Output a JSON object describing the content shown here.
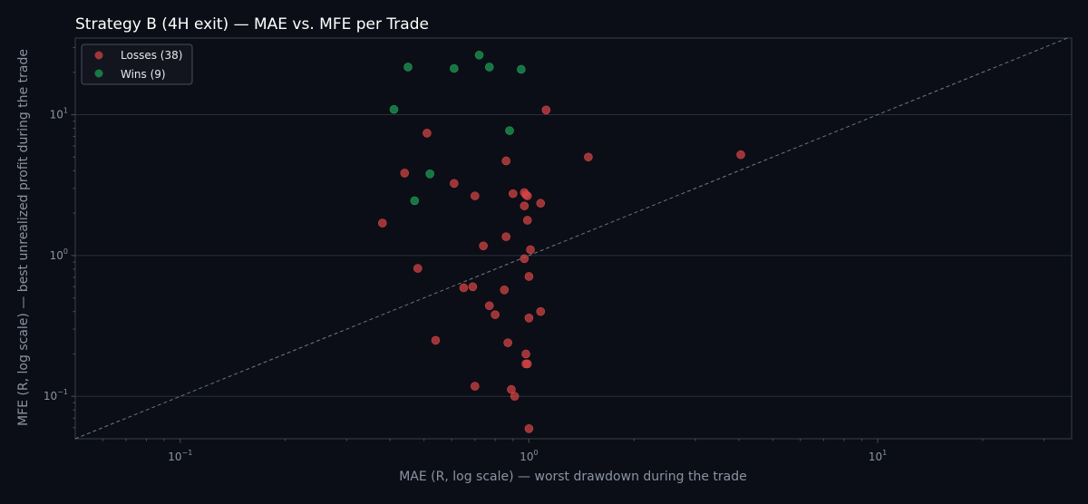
{
  "chart_data": {
    "type": "scatter",
    "title": "Strategy B (4H exit) — MAE vs. MFE per Trade",
    "xlabel": "MAE (R, log scale) — worst drawdown during the trade",
    "ylabel": "MFE (R, log scale) — best unrealized profit during the trade",
    "xscale": "log",
    "yscale": "log",
    "xlim": [
      0.05,
      36
    ],
    "ylim": [
      0.05,
      35
    ],
    "x_ticks": [
      {
        "value": 0.1,
        "base": "10",
        "exp": "−1"
      },
      {
        "value": 1,
        "base": "10",
        "exp": "0"
      },
      {
        "value": 10,
        "base": "10",
        "exp": "1"
      }
    ],
    "y_ticks": [
      {
        "value": 0.1,
        "base": "10",
        "exp": "−1"
      },
      {
        "value": 1,
        "base": "10",
        "exp": "0"
      },
      {
        "value": 10,
        "base": "10",
        "exp": "1"
      }
    ],
    "grid": "y-major",
    "reference_line": "y = x (dashed)",
    "legend": {
      "position": "top-left",
      "entries": [
        "Losses (38)",
        "Wins (9)"
      ]
    },
    "series": [
      {
        "name": "Losses (38)",
        "color": "#d64545",
        "points": [
          [
            1.12,
            10.8
          ],
          [
            0.51,
            7.4
          ],
          [
            1.48,
            5.0
          ],
          [
            4.05,
            5.2
          ],
          [
            0.86,
            4.7
          ],
          [
            0.44,
            3.85
          ],
          [
            0.61,
            3.25
          ],
          [
            0.7,
            2.65
          ],
          [
            0.9,
            2.75
          ],
          [
            0.97,
            2.8
          ],
          [
            0.98,
            2.7
          ],
          [
            0.99,
            2.65
          ],
          [
            1.08,
            2.35
          ],
          [
            0.97,
            2.25
          ],
          [
            0.38,
            1.7
          ],
          [
            0.99,
            1.78
          ],
          [
            0.86,
            1.36
          ],
          [
            0.74,
            1.17
          ],
          [
            1.01,
            1.1
          ],
          [
            0.97,
            0.95
          ],
          [
            0.48,
            0.81
          ],
          [
            1.0,
            0.71
          ],
          [
            0.65,
            0.59
          ],
          [
            0.69,
            0.6
          ],
          [
            0.85,
            0.57
          ],
          [
            0.77,
            0.44
          ],
          [
            0.8,
            0.38
          ],
          [
            1.08,
            0.4
          ],
          [
            1.0,
            0.36
          ],
          [
            0.54,
            0.25
          ],
          [
            0.87,
            0.24
          ],
          [
            0.98,
            0.2
          ],
          [
            0.99,
            0.17
          ],
          [
            0.98,
            0.17
          ],
          [
            0.7,
            0.118
          ],
          [
            0.89,
            0.112
          ],
          [
            0.91,
            0.1
          ],
          [
            1.0,
            0.059
          ]
        ]
      },
      {
        "name": "Wins (9)",
        "color": "#1e9e55",
        "points": [
          [
            0.72,
            26.5
          ],
          [
            0.45,
            21.8
          ],
          [
            0.61,
            21.3
          ],
          [
            0.77,
            21.8
          ],
          [
            0.95,
            21.0
          ],
          [
            0.41,
            10.9
          ],
          [
            0.88,
            7.7
          ],
          [
            0.52,
            3.8
          ],
          [
            0.47,
            2.45
          ]
        ]
      }
    ]
  }
}
